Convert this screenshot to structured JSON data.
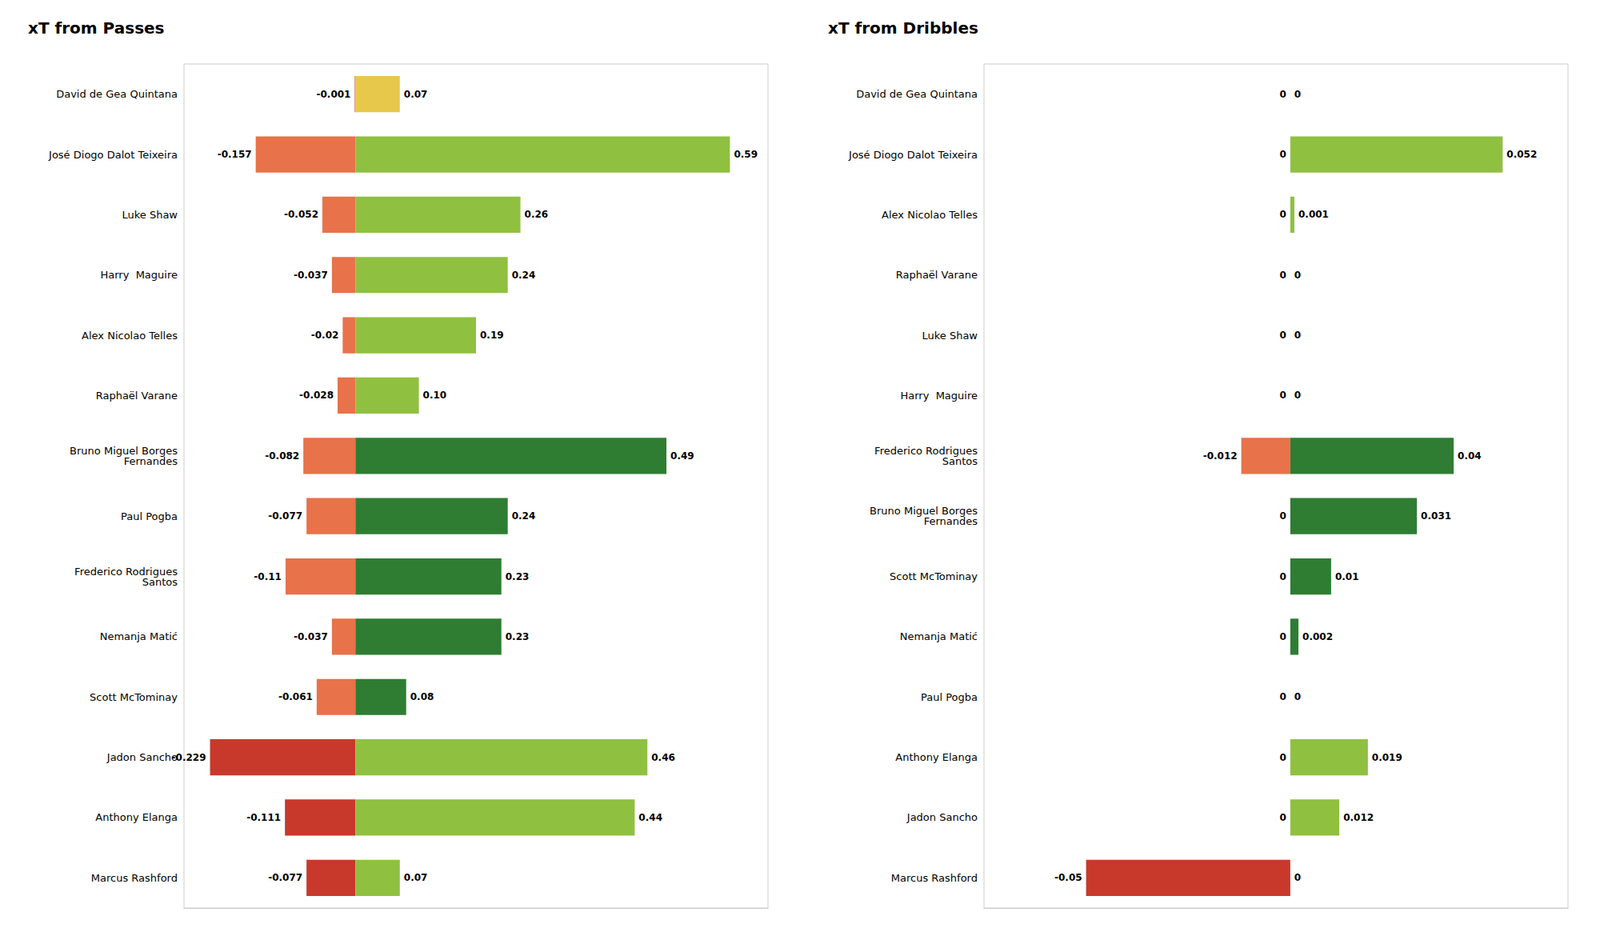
{
  "chart_data": [
    {
      "type": "bar",
      "orientation": "horizontal",
      "title": "xT from Passes",
      "categories": [
        "David de Gea Quintana",
        "José Diogo Dalot Teixeira",
        "Luke Shaw",
        "Harry  Maguire",
        "Alex Nicolao Telles",
        "Raphaël Varane",
        "Bruno Miguel Borges\nFernandes",
        "Paul Pogba",
        "Frederico Rodrigues\nSantos",
        "Nemanja Matić",
        "Scott McTominay",
        "Jadon Sancho",
        "Anthony Elanga",
        "Marcus Rashford"
      ],
      "series": [
        {
          "values": [
            -0.001,
            -0.157,
            -0.052,
            -0.037,
            -0.02,
            -0.028,
            -0.082,
            -0.077,
            -0.11,
            -0.037,
            -0.061,
            -0.229,
            -0.111,
            -0.077
          ],
          "value_labels": [
            "-0.001",
            "-0.157",
            "-0.052",
            "-0.037",
            "-0.02",
            "-0.028",
            "-0.082",
            "-0.077",
            "-0.11",
            "-0.037",
            "-0.061",
            "-0.229",
            "-0.111",
            "-0.077"
          ],
          "colors": [
            "#c8392b",
            "#e8724a",
            "#e8724a",
            "#e8724a",
            "#e8724a",
            "#e8724a",
            "#e8724a",
            "#e8724a",
            "#e8724a",
            "#e8724a",
            "#e8724a",
            "#c8392b",
            "#c8392b",
            "#c8392b"
          ]
        },
        {
          "values": [
            0.07,
            0.59,
            0.26,
            0.24,
            0.19,
            0.1,
            0.49,
            0.24,
            0.23,
            0.23,
            0.08,
            0.46,
            0.44,
            0.07
          ],
          "value_labels": [
            "0.07",
            "0.59",
            "0.26",
            "0.24",
            "0.19",
            "0.10",
            "0.49",
            "0.24",
            "0.23",
            "0.23",
            "0.08",
            "0.46",
            "0.44",
            "0.07"
          ],
          "colors": [
            "#e8c84a",
            "#90c040",
            "#90c040",
            "#90c040",
            "#90c040",
            "#90c040",
            "#2e7d32",
            "#2e7d32",
            "#2e7d32",
            "#2e7d32",
            "#2e7d32",
            "#90c040",
            "#90c040",
            "#90c040"
          ]
        }
      ],
      "xlim": [
        -0.27,
        0.65
      ],
      "data_labels": true,
      "tick_labels": "y",
      "grid": false
    },
    {
      "type": "bar",
      "orientation": "horizontal",
      "title": "xT from Dribbles",
      "categories": [
        "David de Gea Quintana",
        "José Diogo Dalot Teixeira",
        "Alex Nicolao Telles",
        "Raphaël Varane",
        "Luke Shaw",
        "Harry  Maguire",
        "Frederico Rodrigues\nSantos",
        "Bruno Miguel Borges\nFernandes",
        "Scott McTominay",
        "Nemanja Matić",
        "Paul Pogba",
        "Anthony Elanga",
        "Jadon Sancho",
        "Marcus Rashford"
      ],
      "series": [
        {
          "values": [
            0,
            0,
            0,
            0,
            0,
            0,
            -0.012,
            0,
            0,
            0,
            0,
            0,
            0,
            -0.05
          ],
          "value_labels": [
            "0",
            "0",
            "0",
            "0",
            "0",
            "0",
            "-0.012",
            "0",
            "0",
            "0",
            "0",
            "0",
            "0",
            "-0.05"
          ],
          "colors": [
            "#c8392b",
            "#e8724a",
            "#e8724a",
            "#e8724a",
            "#e8724a",
            "#e8724a",
            "#e8724a",
            "#e8724a",
            "#e8724a",
            "#e8724a",
            "#e8724a",
            "#c8392b",
            "#c8392b",
            "#c8392b"
          ]
        },
        {
          "values": [
            0,
            0.052,
            0.001,
            0,
            0,
            0,
            0.04,
            0.031,
            0.01,
            0.002,
            0,
            0.019,
            0.012,
            0
          ],
          "value_labels": [
            "0",
            "0.052",
            "0.001",
            "0",
            "0",
            "0",
            "0.04",
            "0.031",
            "0.01",
            "0.002",
            "0",
            "0.019",
            "0.012",
            "0"
          ],
          "colors": [
            "#e8c84a",
            "#90c040",
            "#90c040",
            "#90c040",
            "#90c040",
            "#90c040",
            "#2e7d32",
            "#2e7d32",
            "#2e7d32",
            "#2e7d32",
            "#2e7d32",
            "#90c040",
            "#90c040",
            "#90c040"
          ]
        }
      ],
      "xlim": [
        -0.075,
        0.068
      ],
      "data_labels": true,
      "tick_labels": "y",
      "grid": false
    }
  ]
}
